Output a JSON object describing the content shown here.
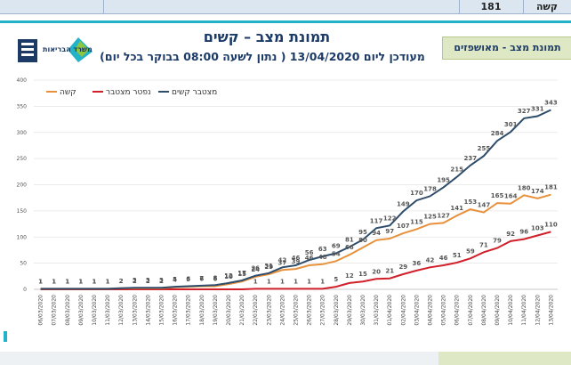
{
  "topbar": {
    "left_text": "",
    "value": "181",
    "label": "קשה"
  },
  "header": {
    "title": "תמונת מצב – קשים",
    "subtitle": "מעודכן ליום 13/04/2020 ( נתון לשעה 08:00 בבוקר בכל יום)",
    "section": "תמונת מצב - מאושפזים",
    "logo_text": "משרד הבריאות"
  },
  "colors": {
    "serious": "#e8913c",
    "deceased": "#d0202a",
    "cumulative": "#2e4d6b",
    "accent": "#23b3c9"
  },
  "chart_data": {
    "type": "line",
    "title": "",
    "xlabel": "",
    "ylabel": "",
    "ylim": [
      0,
      400
    ],
    "yticks": [
      0,
      50,
      100,
      150,
      200,
      250,
      300,
      350,
      400
    ],
    "grid": true,
    "legend_position": "top-left",
    "categories": [
      "06/03/2020",
      "07/03/2020",
      "08/03/2020",
      "09/03/2020",
      "10/03/2020",
      "11/03/2020",
      "12/03/2020",
      "13/03/2020",
      "14/03/2020",
      "15/03/2020",
      "16/03/2020",
      "17/03/2020",
      "18/03/2020",
      "19/03/2020",
      "20/03/2020",
      "21/03/2020",
      "22/03/2020",
      "23/03/2020",
      "24/03/2020",
      "25/03/2020",
      "26/03/2020",
      "27/03/2020",
      "28/03/2020",
      "29/03/2020",
      "30/03/2020",
      "31/03/2020",
      "01/04/2020",
      "02/04/2020",
      "03/04/2020",
      "04/04/2020",
      "05/04/2020",
      "06/04/2020",
      "07/04/2020",
      "08/04/2020",
      "09/04/2020",
      "10/04/2020",
      "11/04/2020",
      "12/04/2020",
      "13/04/2020"
    ],
    "series": [
      {
        "name": "מצטבר קשים",
        "color": "#2e4d6b",
        "values": [
          1,
          1,
          1,
          1,
          1,
          1,
          2,
          3,
          3,
          3,
          5,
          6,
          7,
          8,
          12,
          17,
          26,
          31,
          42,
          46,
          56,
          63,
          69,
          81,
          95,
          117,
          122,
          149,
          170,
          178,
          195,
          215,
          237,
          255,
          284,
          301,
          327,
          331,
          343
        ]
      },
      {
        "name": "קשה",
        "color": "#e8913c",
        "values": [
          1,
          1,
          1,
          1,
          1,
          1,
          2,
          2,
          2,
          2,
          4,
          5,
          6,
          6,
          10,
          15,
          24,
          29,
          37,
          39,
          46,
          48,
          54,
          66,
          80,
          94,
          97,
          107,
          115,
          125,
          127,
          141,
          153,
          147,
          165,
          164,
          180,
          174,
          181
        ]
      },
      {
        "name": "נפטר מצטבר",
        "color": "#d0202a",
        "values": [
          0,
          0,
          0,
          0,
          0,
          0,
          0,
          0,
          0,
          0,
          0,
          0,
          0,
          0,
          0,
          0,
          1,
          1,
          1,
          1,
          1,
          1,
          5,
          12,
          15,
          20,
          21,
          29,
          36,
          42,
          46,
          51,
          59,
          71,
          79,
          92,
          96,
          103,
          110
        ]
      }
    ]
  }
}
